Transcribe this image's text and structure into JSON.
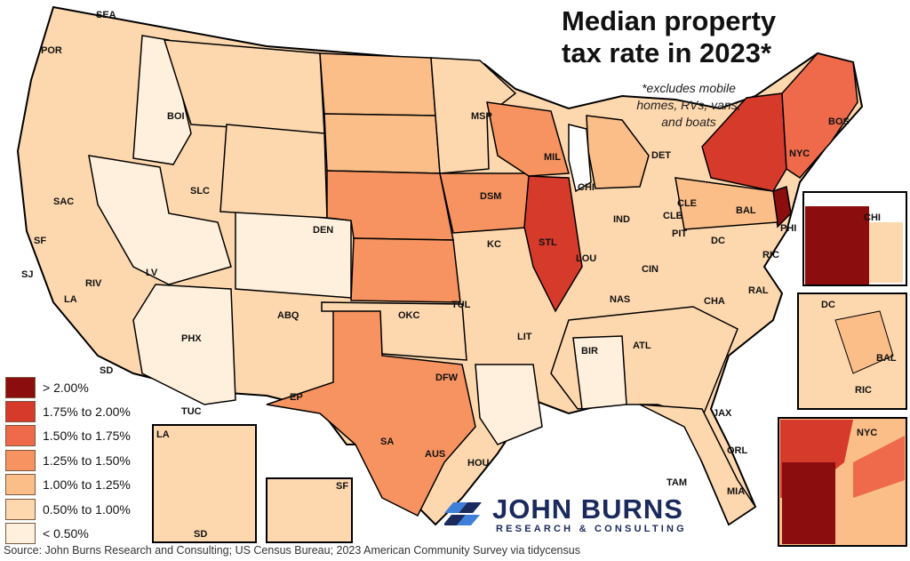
{
  "title_line1": "Median property",
  "title_line2": "tax rate in 2023*",
  "note_line1": "*excludes mobile",
  "note_line2": "homes, RVs, vans,",
  "note_line3": "and boats",
  "legend": [
    {
      "label": "> 2.00%",
      "color": "#8b0d0d"
    },
    {
      "label": "1.75% to 2.00%",
      "color": "#d63a2b"
    },
    {
      "label": "1.50% to 1.75%",
      "color": "#ee6a4b"
    },
    {
      "label": "1.25% to 1.50%",
      "color": "#f69360"
    },
    {
      "label": "1.00% to 1.25%",
      "color": "#fbbe88"
    },
    {
      "label": "0.50% to 1.00%",
      "color": "#fdd7ae"
    },
    {
      "label": "< 0.50%",
      "color": "#fef0dc"
    }
  ],
  "cities": {
    "sea": "SEA",
    "por": "POR",
    "boi": "BOI",
    "sac": "SAC",
    "sf": "SF",
    "sj": "SJ",
    "la": "LA",
    "riv": "RIV",
    "sd": "SD",
    "lv": "LV",
    "slc": "SLC",
    "den": "DEN",
    "phx": "PHX",
    "tuc": "TUC",
    "abq": "ABQ",
    "ep": "EP",
    "msp": "MSP",
    "dsm": "DSM",
    "kc": "KC",
    "stl": "STL",
    "okc": "OKC",
    "tul": "TUL",
    "dfw": "DFW",
    "aus": "AUS",
    "sa": "SA",
    "hou": "HOU",
    "mil": "MIL",
    "chi": "CHI",
    "det": "DET",
    "cle": "CLE",
    "ind": "IND",
    "clb": "CLB",
    "pit": "PIT",
    "cin": "CIN",
    "lou": "LOU",
    "nas": "NAS",
    "lit": "LIT",
    "bir": "BIR",
    "atl": "ATL",
    "cha": "CHA",
    "ral": "RAL",
    "jax": "JAX",
    "orl": "ORL",
    "tam": "TAM",
    "mia": "MIA",
    "dc": "DC",
    "bal": "BAL",
    "ric": "RIC",
    "phi": "PHI",
    "nyc": "NYC",
    "bos": "BOS"
  },
  "insets": {
    "chi": "CHI",
    "dc": "DC",
    "bal": "BAL",
    "ric": "RIC",
    "nyc": "NYC",
    "la": "LA",
    "sd": "SD",
    "sf": "SF"
  },
  "logo": {
    "name": "JOHN BURNS",
    "sub": "RESEARCH & CONSULTING"
  },
  "source": "Source: John Burns Research and Consulting; US Census Bureau; 2023 American Community Survey via tidycensus"
}
